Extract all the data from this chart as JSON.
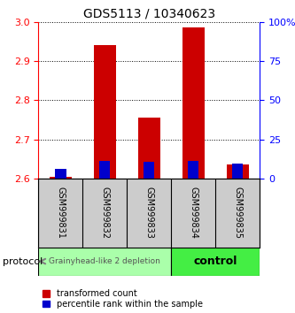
{
  "title": "GDS5113 / 10340623",
  "samples": [
    "GSM999831",
    "GSM999832",
    "GSM999833",
    "GSM999834",
    "GSM999835"
  ],
  "transformed_count_base": 2.6,
  "transformed_count_tops": [
    2.605,
    2.94,
    2.755,
    2.985,
    2.635
  ],
  "percentile_base": 2.6,
  "percentile_tops": [
    2.625,
    2.645,
    2.642,
    2.645,
    2.638
  ],
  "ylim": [
    2.6,
    3.0
  ],
  "left_yticks": [
    2.6,
    2.7,
    2.8,
    2.9,
    3.0
  ],
  "right_yticks": [
    0,
    25,
    50,
    75,
    100
  ],
  "groups": [
    {
      "label": "Grainyhead-like 2 depletion",
      "samples": [
        0,
        1,
        2
      ],
      "color": "#aaffaa"
    },
    {
      "label": "control",
      "samples": [
        3,
        4
      ],
      "color": "#44ee44"
    }
  ],
  "bar_color_red": "#cc0000",
  "bar_color_blue": "#0000cc",
  "bar_width": 0.5,
  "blue_bar_width": 0.25,
  "left_yaxis_color": "red",
  "right_yaxis_color": "blue",
  "grid_color": "black",
  "protocol_label": "protocol",
  "legend_red": "transformed count",
  "legend_blue": "percentile rank within the sample",
  "sample_box_color": "#cccccc",
  "title_fontsize": 10
}
